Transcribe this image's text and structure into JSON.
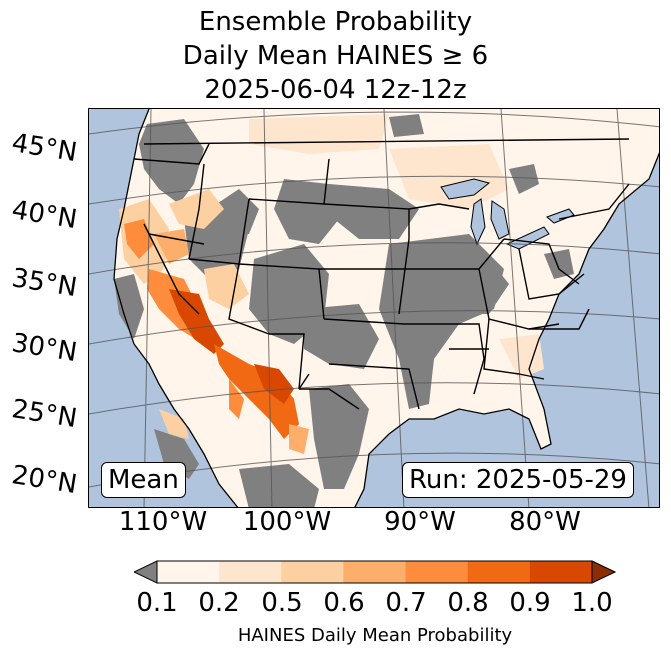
{
  "title": {
    "line1": "Ensemble Probability",
    "line2": "Daily Mean HAINES ≥ 6",
    "line3": "2025-06-04 12z-12z"
  },
  "map": {
    "latitude_labels": [
      "45°N",
      "40°N",
      "35°N",
      "30°N",
      "25°N",
      "20°N"
    ],
    "longitude_labels": [
      "110°W",
      "100°W",
      "90°W",
      "80°W"
    ],
    "mean_label": "Mean",
    "run_label": "Run: 2025-05-29",
    "colors": {
      "ocean": "#b0c4de",
      "below_threshold": "#808080",
      "state_borders": "#000000",
      "graticule": "#555555"
    }
  },
  "colorbar": {
    "tick_labels": [
      "0.1",
      "0.2",
      "0.5",
      "0.6",
      "0.7",
      "0.8",
      "0.9",
      "1.0"
    ],
    "colors": [
      "#fff5eb",
      "#fee6ce",
      "#fdd0a2",
      "#fdae6b",
      "#fd8d3c",
      "#f16913",
      "#d94801"
    ],
    "under_color": "#808080",
    "over_color": "#8c2d04",
    "label": "HAINES Daily Mean Probability"
  }
}
